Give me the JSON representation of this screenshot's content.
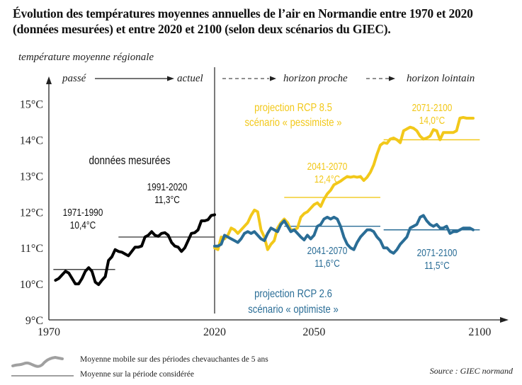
{
  "title_line1": "Évolution des températures moyennes annuelles de l’air en Normandie entre 1970 et 2020",
  "title_line2": "(données mesurées) et entre 2020 et 2100 (selon deux scénarios du GIEC).",
  "colors": {
    "measured": "#000000",
    "rcp85": "#f2c81a",
    "rcp26": "#2a6d96",
    "mean_line_measured": "#444444",
    "legend_gray": "#a0a0a0",
    "axis": "#222222"
  },
  "chart_data": {
    "type": "line",
    "title": "Évolution des températures moyennes annuelles de l’air en Normandie entre 1970 et 2020 (données mesurées) et entre 2020 et 2100 (selon deux scénarios du GIEC).",
    "ylabel": "température moyenne régionale",
    "xlabel": "",
    "xlim": [
      1970,
      2100
    ],
    "ylim": [
      9,
      15.5
    ],
    "x_ticks": [
      1970,
      2020,
      2050,
      2100
    ],
    "x_tick_labels": [
      "1970",
      "2020",
      "2050",
      "2100"
    ],
    "y_ticks": [
      9,
      10,
      11,
      12,
      13,
      14,
      15
    ],
    "y_tick_labels": [
      "9°C",
      "10°C",
      "11°C",
      "12°C",
      "13°C",
      "14°C",
      "15°C"
    ],
    "grid": false,
    "period_labels": {
      "past": "passé",
      "current": "actuel",
      "near": "horizon proche",
      "far": "horizon lointain"
    },
    "annotations": {
      "measured": "données mesurées",
      "rcp85_title": "projection RCP 8.5",
      "rcp85_sub": "scénario « pessimiste »",
      "rcp26_title": "projection RCP 2.6",
      "rcp26_sub": "scénario « optimiste »"
    },
    "series": [
      {
        "name": "données mesurées",
        "color": "#000000",
        "x": [
          1972,
          1973,
          1974,
          1975,
          1976,
          1977,
          1978,
          1979,
          1980,
          1981,
          1982,
          1983,
          1984,
          1985,
          1986,
          1987,
          1988,
          1989,
          1990,
          1991,
          1992,
          1993,
          1994,
          1995,
          1996,
          1997,
          1998,
          1999,
          2000,
          2001,
          2002,
          2003,
          2004,
          2005,
          2006,
          2007,
          2008,
          2009,
          2010,
          2011,
          2012,
          2013,
          2014,
          2015,
          2016,
          2017,
          2018,
          2019,
          2020
        ],
        "y": [
          10.1,
          10.15,
          10.25,
          10.35,
          10.3,
          10.15,
          10.0,
          10.0,
          10.15,
          10.35,
          10.45,
          10.35,
          10.05,
          9.98,
          10.1,
          10.2,
          10.65,
          10.75,
          10.95,
          10.9,
          10.88,
          10.83,
          10.78,
          10.9,
          11.02,
          11.02,
          11.05,
          11.3,
          11.35,
          11.45,
          11.35,
          11.32,
          11.4,
          11.42,
          11.35,
          11.15,
          11.05,
          11.02,
          10.9,
          11.0,
          11.2,
          11.4,
          11.42,
          11.5,
          11.75,
          11.75,
          11.78,
          11.9,
          11.92
        ]
      },
      {
        "name": "projection RCP 8.5",
        "color": "#f2c81a",
        "x": [
          2020,
          2021,
          2022,
          2023,
          2024,
          2025,
          2026,
          2027,
          2028,
          2029,
          2030,
          2031,
          2032,
          2033,
          2034,
          2035,
          2036,
          2037,
          2038,
          2039,
          2040,
          2041,
          2042,
          2043,
          2044,
          2045,
          2046,
          2047,
          2048,
          2049,
          2050,
          2051,
          2052,
          2053,
          2054,
          2055,
          2056,
          2057,
          2058,
          2059,
          2060,
          2061,
          2062,
          2063,
          2064,
          2065,
          2066,
          2067,
          2068,
          2069,
          2070,
          2071,
          2072,
          2073,
          2074,
          2075,
          2076,
          2077,
          2078,
          2079,
          2080,
          2081,
          2082,
          2083,
          2084,
          2085,
          2086,
          2087,
          2088,
          2089,
          2090,
          2091,
          2092,
          2093,
          2094,
          2095,
          2096,
          2097,
          2098
        ],
        "y": [
          11.0,
          10.95,
          11.3,
          11.25,
          11.35,
          11.55,
          11.5,
          11.4,
          11.5,
          11.6,
          11.7,
          11.9,
          12.05,
          12.0,
          11.5,
          11.3,
          10.95,
          11.1,
          11.2,
          11.55,
          11.7,
          11.8,
          11.7,
          11.5,
          11.5,
          11.55,
          11.85,
          11.95,
          12.0,
          12.1,
          12.2,
          12.25,
          12.15,
          12.35,
          12.5,
          12.6,
          12.75,
          12.8,
          12.85,
          12.92,
          12.98,
          12.96,
          12.98,
          12.96,
          12.98,
          12.87,
          12.96,
          13.1,
          13.3,
          13.6,
          13.85,
          13.92,
          13.9,
          14.02,
          14.05,
          14.0,
          13.92,
          14.25,
          14.3,
          14.35,
          14.32,
          14.25,
          14.1,
          14.02,
          14.05,
          14.1,
          14.28,
          14.25,
          14.0,
          14.2,
          14.2,
          14.2,
          14.2,
          14.25,
          14.6,
          14.62,
          14.6,
          14.6,
          14.6
        ]
      },
      {
        "name": "projection RCP 2.6",
        "color": "#2a6d96",
        "x": [
          2020,
          2021,
          2022,
          2023,
          2024,
          2025,
          2026,
          2027,
          2028,
          2029,
          2030,
          2031,
          2032,
          2033,
          2034,
          2035,
          2036,
          2037,
          2038,
          2039,
          2040,
          2041,
          2042,
          2043,
          2044,
          2045,
          2046,
          2047,
          2048,
          2049,
          2050,
          2051,
          2052,
          2053,
          2054,
          2055,
          2056,
          2057,
          2058,
          2059,
          2060,
          2061,
          2062,
          2063,
          2064,
          2065,
          2066,
          2067,
          2068,
          2069,
          2070,
          2071,
          2072,
          2073,
          2074,
          2075,
          2076,
          2077,
          2078,
          2079,
          2080,
          2081,
          2082,
          2083,
          2084,
          2085,
          2086,
          2087,
          2088,
          2089,
          2090,
          2091,
          2092,
          2093,
          2094,
          2095,
          2096,
          2097,
          2098
        ],
        "y": [
          11.05,
          11.05,
          11.1,
          11.35,
          11.3,
          11.25,
          11.2,
          11.15,
          11.25,
          11.4,
          11.45,
          11.4,
          11.45,
          11.35,
          11.25,
          11.2,
          11.4,
          11.55,
          11.5,
          11.45,
          11.65,
          11.75,
          11.6,
          11.45,
          11.5,
          11.4,
          11.3,
          11.22,
          11.35,
          11.25,
          11.35,
          11.6,
          11.65,
          11.8,
          11.85,
          11.8,
          11.85,
          11.8,
          11.6,
          11.3,
          11.1,
          11.0,
          10.95,
          11.15,
          11.3,
          11.4,
          11.5,
          11.5,
          11.45,
          11.3,
          11.2,
          11.0,
          11.0,
          10.9,
          10.85,
          10.95,
          11.1,
          11.2,
          11.3,
          11.55,
          11.6,
          11.65,
          11.85,
          11.9,
          11.75,
          11.65,
          11.6,
          11.65,
          11.55,
          11.55,
          11.6,
          11.4,
          11.45,
          11.45,
          11.5,
          11.55,
          11.55,
          11.55,
          11.5
        ]
      }
    ],
    "period_means": [
      {
        "series": "données mesurées",
        "period": "1971-1990",
        "value": 10.4,
        "label": "10,4°C",
        "x_range": [
          1972,
          1990
        ]
      },
      {
        "series": "données mesurées",
        "period": "1991-2020",
        "value": 11.3,
        "label": "11,3°C",
        "x_range": [
          1991,
          2020
        ]
      },
      {
        "series": "projection RCP 8.5",
        "period": "2041-2070",
        "value": 12.4,
        "label": "12,4°C",
        "x_range": [
          2041,
          2070
        ]
      },
      {
        "series": "projection RCP 8.5",
        "period": "2071-2100",
        "value": 14.0,
        "label": "14,0°C",
        "x_range": [
          2071,
          2100
        ]
      },
      {
        "series": "projection RCP 2.6",
        "period": "2041-2070",
        "value": 11.6,
        "label": "11,6°C",
        "x_range": [
          2041,
          2070
        ]
      },
      {
        "series": "projection RCP 2.6",
        "period": "2071-2100",
        "value": 11.5,
        "label": "11,5°C",
        "x_range": [
          2071,
          2100
        ]
      }
    ],
    "legend": {
      "placement": "bottom-left",
      "entries": [
        {
          "symbol": "wavy-line",
          "label": "Moyenne mobile sur des périodes chevauchantes de 5 ans"
        },
        {
          "symbol": "straight-line",
          "label": "Moyenne sur la période considérée"
        }
      ]
    },
    "source": "Source : GIEC normand"
  }
}
